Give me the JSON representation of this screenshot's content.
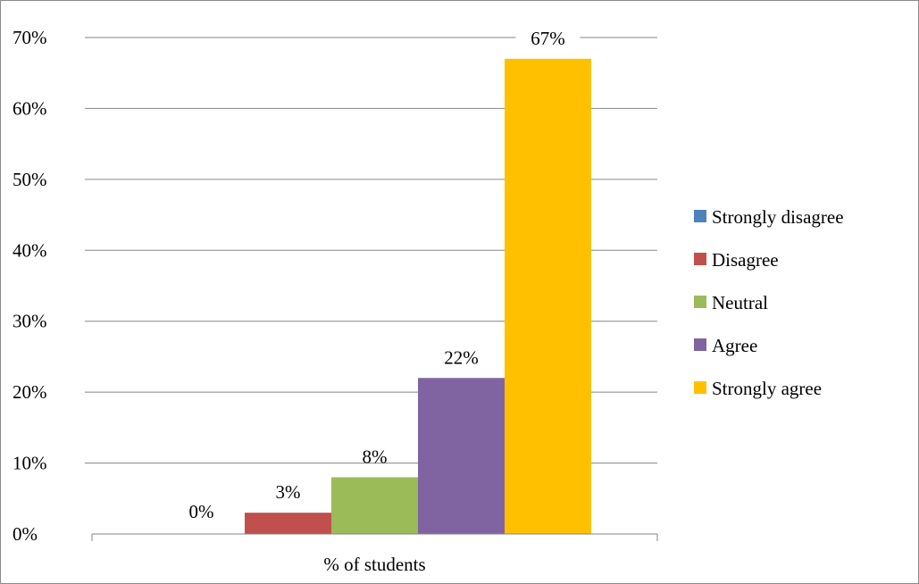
{
  "chart_data": {
    "type": "bar",
    "title": "",
    "xlabel": "",
    "ylabel": "",
    "categories": [
      "% of students"
    ],
    "series": [
      {
        "name": "Strongly disagree",
        "values": [
          0
        ],
        "label": "0%",
        "color": "#4f81bd"
      },
      {
        "name": "Disagree",
        "values": [
          3
        ],
        "label": "3%",
        "color": "#c0504d"
      },
      {
        "name": "Neutral",
        "values": [
          8
        ],
        "label": "8%",
        "color": "#9bbb59"
      },
      {
        "name": "Agree",
        "values": [
          22
        ],
        "label": "22%",
        "color": "#8064a2"
      },
      {
        "name": "Strongly agree",
        "values": [
          67
        ],
        "label": "67%",
        "color": "#ffc000"
      }
    ],
    "ylim": [
      0,
      70
    ],
    "yticks": [
      {
        "value": 0,
        "label": "0%"
      },
      {
        "value": 10,
        "label": "10%"
      },
      {
        "value": 20,
        "label": "20%"
      },
      {
        "value": 30,
        "label": "30%"
      },
      {
        "value": 40,
        "label": "40%"
      },
      {
        "value": 50,
        "label": "50%"
      },
      {
        "value": 60,
        "label": "60%"
      },
      {
        "value": 70,
        "label": "70%"
      }
    ],
    "grid": true,
    "legend": "right",
    "gridline_color": "#868686"
  }
}
